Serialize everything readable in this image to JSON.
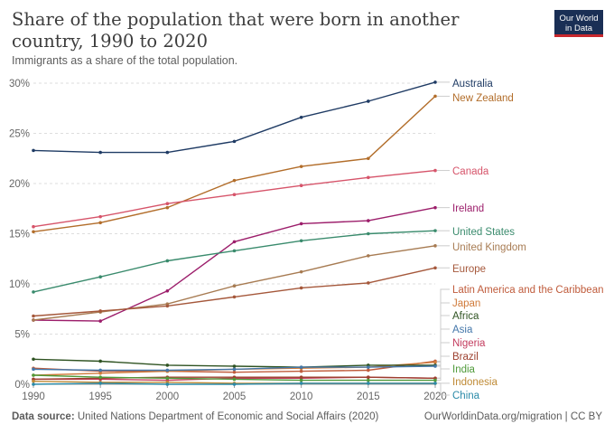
{
  "header": {
    "title": "Share of the population that were born in another country, 1990 to 2020",
    "subtitle": "Immigrants as a share of the total population.",
    "logo_line1": "Our World",
    "logo_line2": "in Data"
  },
  "footer": {
    "source_label": "Data source:",
    "source_text": "United Nations Department of Economic and Social Affairs (2020)",
    "right_text": "OurWorldinData.org/migration | CC BY"
  },
  "chart_data": {
    "type": "line",
    "x": [
      1990,
      1995,
      2000,
      2005,
      2010,
      2015,
      2020
    ],
    "xlim": [
      1990,
      2020
    ],
    "ylim": [
      0,
      30
    ],
    "y_ticks": [
      0,
      5,
      10,
      15,
      20,
      25,
      30
    ],
    "y_tick_labels": [
      "0%",
      "5%",
      "10%",
      "15%",
      "20%",
      "25%",
      "30%"
    ],
    "x_tick_labels": [
      "1990",
      "1995",
      "2000",
      "2005",
      "2010",
      "2015",
      "2020"
    ],
    "grid": "horizontal dashed",
    "legend": "line-end labels, right",
    "series": [
      {
        "name": "Australia",
        "color": "#1f3b64",
        "values": [
          23.3,
          23.1,
          23.1,
          24.2,
          26.6,
          28.2,
          30.1
        ]
      },
      {
        "name": "New Zealand",
        "color": "#b26d2a",
        "values": [
          15.2,
          16.1,
          17.6,
          20.3,
          21.7,
          22.5,
          28.7
        ]
      },
      {
        "name": "Canada",
        "color": "#d6546a",
        "values": [
          15.7,
          16.7,
          18.0,
          18.9,
          19.8,
          20.6,
          21.3
        ]
      },
      {
        "name": "Ireland",
        "color": "#9c1e6b",
        "values": [
          6.4,
          6.3,
          9.3,
          14.2,
          16.0,
          16.3,
          17.6
        ]
      },
      {
        "name": "United States",
        "color": "#3a8b6d",
        "values": [
          9.2,
          10.7,
          12.3,
          13.3,
          14.3,
          15.0,
          15.3
        ]
      },
      {
        "name": "United Kingdom",
        "color": "#a77b52",
        "values": [
          6.4,
          7.2,
          8.0,
          9.8,
          11.2,
          12.8,
          13.8
        ]
      },
      {
        "name": "Europe",
        "color": "#a5583b",
        "values": [
          6.8,
          7.3,
          7.8,
          8.7,
          9.6,
          10.1,
          11.6
        ]
      },
      {
        "name": "Latin America and the Caribbean",
        "color": "#c05c3c",
        "values": [
          1.6,
          1.3,
          1.3,
          1.2,
          1.3,
          1.4,
          2.3
        ]
      },
      {
        "name": "Japan",
        "color": "#d07a3a",
        "values": [
          0.9,
          1.1,
          1.3,
          1.5,
          1.6,
          1.7,
          2.2
        ]
      },
      {
        "name": "Africa",
        "color": "#2f5322",
        "values": [
          2.5,
          2.3,
          1.9,
          1.8,
          1.7,
          1.9,
          1.9
        ]
      },
      {
        "name": "Asia",
        "color": "#4477aa",
        "values": [
          1.5,
          1.4,
          1.4,
          1.5,
          1.7,
          1.7,
          1.8
        ]
      },
      {
        "name": "Nigeria",
        "color": "#c33c5e",
        "values": [
          0.5,
          0.5,
          0.4,
          0.6,
          0.6,
          0.7,
          0.6
        ]
      },
      {
        "name": "Brazil",
        "color": "#9c3f2e",
        "values": [
          0.5,
          0.6,
          0.7,
          0.7,
          0.7,
          0.7,
          0.6
        ]
      },
      {
        "name": "India",
        "color": "#4f9a3a",
        "values": [
          0.9,
          0.7,
          0.6,
          0.5,
          0.4,
          0.4,
          0.4
        ]
      },
      {
        "name": "Indonesia",
        "color": "#bf8a35",
        "values": [
          0.3,
          0.2,
          0.2,
          0.1,
          0.1,
          0.1,
          0.1
        ]
      },
      {
        "name": "China",
        "color": "#2a8aa8",
        "values": [
          0.0,
          0.1,
          0.0,
          0.0,
          0.1,
          0.1,
          0.1
        ]
      }
    ]
  }
}
